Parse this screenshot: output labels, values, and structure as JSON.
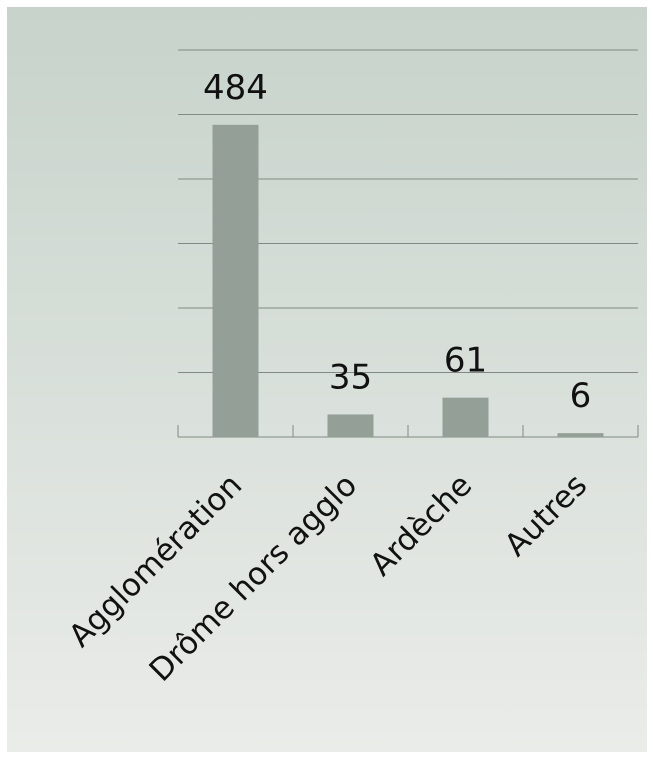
{
  "chart_data": {
    "type": "bar",
    "categories": [
      "Agglomération",
      "Drôme hors agglo",
      "Ardèche",
      "Autres"
    ],
    "values": [
      484,
      35,
      61,
      6
    ],
    "color": "#949f97",
    "ylim": [
      0,
      600
    ],
    "yticks": [
      0,
      100,
      200,
      300,
      400,
      500,
      600
    ],
    "grid": true
  }
}
